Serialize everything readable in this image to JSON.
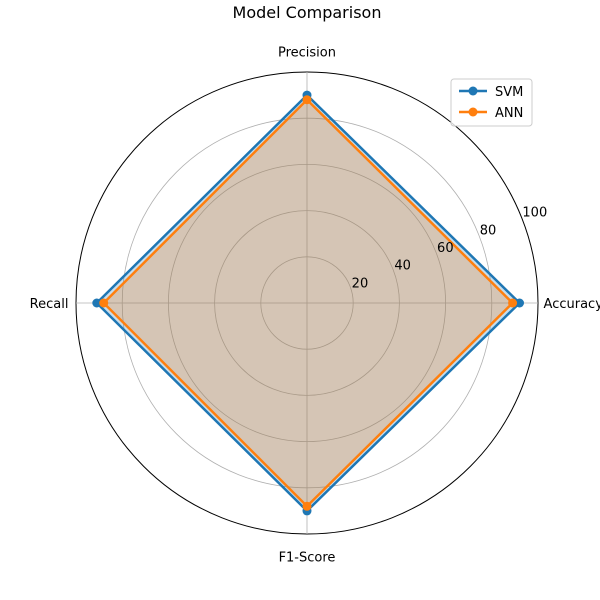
{
  "chart_data": {
    "type": "radar",
    "title": "Model Comparison",
    "axes": [
      "Accuracy",
      "Precision",
      "Recall",
      "F1-Score"
    ],
    "rlim": [
      0,
      100
    ],
    "rticks": [
      20,
      40,
      60,
      80,
      100
    ],
    "grid": true,
    "legend_position": "top-right",
    "series": [
      {
        "name": "SVM",
        "color": "#1f77b4",
        "values": [
          92,
          90,
          91,
          90
        ]
      },
      {
        "name": "ANN",
        "color": "#ff7f0e",
        "values": [
          89,
          88,
          88,
          88
        ]
      }
    ]
  }
}
